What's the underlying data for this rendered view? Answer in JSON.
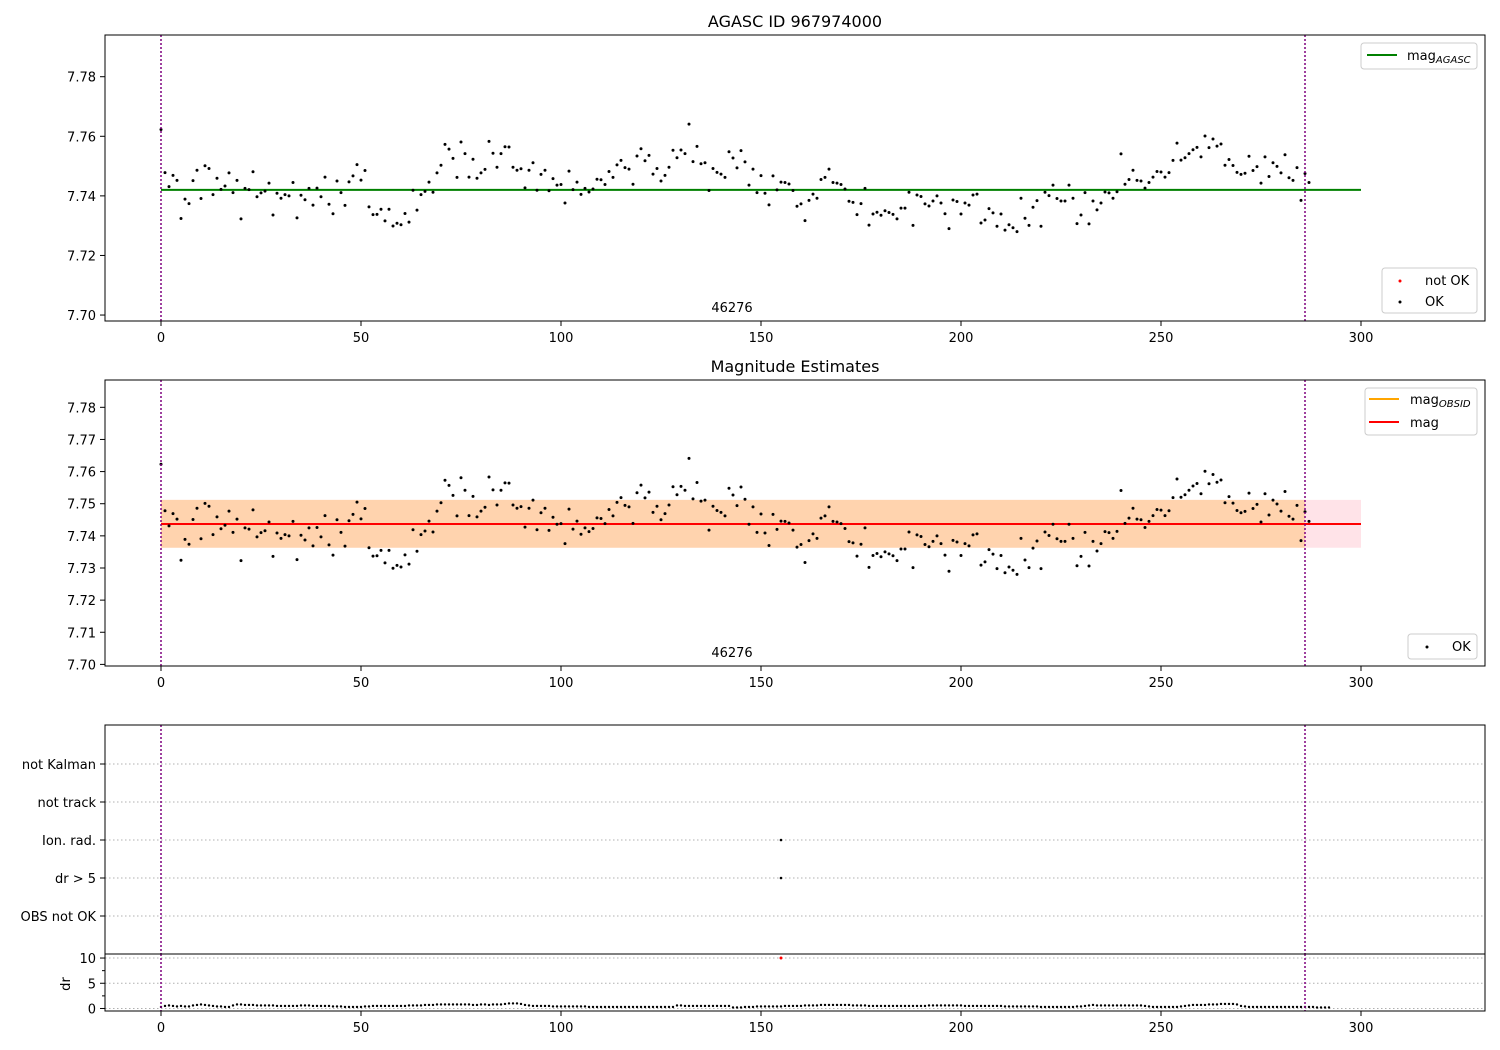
{
  "chart_data": [
    {
      "type": "scatter",
      "title": "AGASC ID 967974000",
      "xlim": [
        -14,
        331
      ],
      "ylim": [
        7.698,
        7.794
      ],
      "yticks": [
        7.7,
        7.72,
        7.74,
        7.76,
        7.78
      ],
      "xticks": [
        0,
        50,
        100,
        150,
        200,
        250,
        300
      ],
      "grid": false,
      "obsid_label": "46276",
      "vlines": [
        0,
        286
      ],
      "reference_lines": [
        {
          "name": "mag",
          "subscript": "AGASC",
          "value": 7.742,
          "color": "#008000",
          "x_range": [
            0,
            300
          ]
        }
      ],
      "legends": [
        {
          "placement": "top-right",
          "entries": [
            {
              "label": "mag",
              "subscript": "AGASC",
              "kind": "line",
              "color": "#008000"
            }
          ]
        },
        {
          "placement": "bottom-right",
          "entries": [
            {
              "label": "not OK",
              "kind": "dot",
              "color": "#ff0000"
            },
            {
              "label": "OK",
              "kind": "dot",
              "color": "#000000"
            }
          ]
        }
      ],
      "series": [
        {
          "name": "OK",
          "color": "#000000",
          "x_start": 0,
          "x_step": 1,
          "values": [
            7.7623,
            7.7478,
            7.7431,
            7.7469,
            7.7452,
            7.7324,
            7.7389,
            7.7374,
            7.7451,
            7.7486,
            7.7391,
            7.7501,
            7.7492,
            7.7404,
            7.7459,
            7.7422,
            7.7433,
            7.7477,
            7.7411,
            7.7452,
            7.7323,
            7.7425,
            7.7421,
            7.7481,
            7.7397,
            7.741,
            7.7416,
            7.7443,
            7.7336,
            7.7409,
            7.7392,
            7.7404,
            7.74,
            7.7445,
            7.7326,
            7.7402,
            7.7387,
            7.7425,
            7.7369,
            7.7426,
            7.7397,
            7.7463,
            7.7372,
            7.734,
            7.745,
            7.7411,
            7.7368,
            7.7447,
            7.7467,
            7.7505,
            7.7453,
            7.7485,
            7.7363,
            7.7337,
            7.7338,
            7.7355,
            7.7316,
            7.7355,
            7.7299,
            7.7308,
            7.7303,
            7.7341,
            7.7312,
            7.7419,
            7.7352,
            7.7404,
            7.7415,
            7.7446,
            7.7412,
            7.7477,
            7.7503,
            7.7573,
            7.7557,
            7.7526,
            7.7462,
            7.7581,
            7.7542,
            7.7463,
            7.7523,
            7.7459,
            7.7477,
            7.7489,
            7.7583,
            7.7543,
            7.7496,
            7.7542,
            7.7565,
            7.7564,
            7.7496,
            7.7486,
            7.7491,
            7.7427,
            7.7486,
            7.7511,
            7.7419,
            7.7472,
            7.7486,
            7.7417,
            7.7458,
            7.7436,
            7.7438,
            7.7376,
            7.7483,
            7.7421,
            7.7446,
            7.7405,
            7.7425,
            7.7413,
            7.7423,
            7.7456,
            7.7454,
            7.7438,
            7.7482,
            7.7462,
            7.7504,
            7.7519,
            7.7495,
            7.749,
            7.7439,
            7.7534,
            7.7558,
            7.7518,
            7.7536,
            7.7473,
            7.7492,
            7.745,
            7.7469,
            7.7496,
            7.7553,
            7.7528,
            7.7554,
            7.7542,
            7.7641,
            7.7515,
            7.7566,
            7.7508,
            7.7511,
            7.7418,
            7.7492,
            7.7479,
            7.7473,
            7.7462,
            7.7548,
            7.7527,
            7.7494,
            7.7552,
            7.7514,
            7.7436,
            7.749,
            7.7411,
            7.7468,
            7.7409,
            7.737,
            7.7467,
            7.742,
            7.7446,
            7.7445,
            7.744,
            7.7418,
            7.7365,
            7.7373,
            7.7317,
            7.7385,
            7.7406,
            7.7392,
            7.7455,
            7.7462,
            7.749,
            7.7445,
            7.7443,
            7.7438,
            7.7423,
            7.7382,
            7.7378,
            7.7337,
            7.7374,
            7.7425,
            7.7302,
            7.7339,
            7.7345,
            7.7335,
            7.735,
            7.7344,
            7.7338,
            7.7323,
            7.7359,
            7.7359,
            7.7412,
            7.7301,
            7.7403,
            7.7398,
            7.7373,
            7.7366,
            7.7383,
            7.74,
            7.7376,
            7.734,
            7.729,
            7.7386,
            7.7381,
            7.7339,
            7.7376,
            7.7369,
            7.7403,
            7.7406,
            7.7309,
            7.7319,
            7.7357,
            7.7343,
            7.7298,
            7.7339,
            7.7285,
            7.7303,
            7.7293,
            7.728,
            7.7392,
            7.7325,
            7.7301,
            7.7362,
            7.7384,
            7.7298,
            7.7412,
            7.7401,
            7.7436,
            7.7391,
            7.7383,
            7.7383,
            7.7436,
            7.7392,
            7.7307,
            7.7336,
            7.7411,
            7.7306,
            7.7383,
            7.7353,
            7.7376,
            7.7413,
            7.741,
            7.7392,
            7.7414,
            7.7541,
            7.7439,
            7.7455,
            7.7486,
            7.7452,
            7.745,
            7.7426,
            7.7445,
            7.7463,
            7.7482,
            7.748,
            7.7463,
            7.7478,
            7.7519,
            7.7577,
            7.752,
            7.7528,
            7.7542,
            7.7555,
            7.7563,
            7.7531,
            7.7601,
            7.7562,
            7.7591,
            7.7567,
            7.7574,
            7.7503,
            7.7522,
            7.7502,
            7.7479,
            7.7472,
            7.7476,
            7.7533,
            7.7485,
            7.7498,
            7.7443,
            7.7531,
            7.7465,
            7.7511,
            7.7499,
            7.7477,
            7.7538,
            7.7461,
            7.7452,
            7.7495,
            7.7385,
            7.7475,
            7.7445
          ]
        },
        {
          "name": "not OK",
          "color": "#ff0000",
          "values": []
        }
      ]
    },
    {
      "type": "scatter",
      "title": "Magnitude Estimates",
      "xlim": [
        -14,
        331
      ],
      "ylim": [
        7.6995,
        7.7885
      ],
      "yticks": [
        7.7,
        7.71,
        7.72,
        7.73,
        7.74,
        7.75,
        7.76,
        7.77,
        7.78
      ],
      "xticks": [
        0,
        50,
        100,
        150,
        200,
        250,
        300
      ],
      "grid": false,
      "obsid_label": "46276",
      "vlines": [
        0,
        286
      ],
      "reference_lines": [
        {
          "name": "mag",
          "subscript": "OBSID",
          "value": 7.7437,
          "color": "#ffa500",
          "x_range": [
            0,
            300
          ],
          "band": [
            7.7363,
            7.7512
          ]
        },
        {
          "name": "mag",
          "value": 7.7437,
          "color": "#ff0000",
          "x_range": [
            0,
            300
          ],
          "band": [
            7.7363,
            7.7512
          ]
        }
      ],
      "legends": [
        {
          "placement": "top-right",
          "entries": [
            {
              "label": "mag",
              "subscript": "OBSID",
              "kind": "line",
              "color": "#ffa500"
            },
            {
              "label": "mag",
              "kind": "line",
              "color": "#ff0000"
            }
          ]
        },
        {
          "placement": "bottom-right",
          "entries": [
            {
              "label": "OK",
              "kind": "dot",
              "color": "#000000"
            }
          ]
        }
      ],
      "series": [
        {
          "name": "OK",
          "color": "#000000",
          "x_start": 0,
          "x_step": 1,
          "values": "same as AGASC ID 967974000 OK series"
        }
      ]
    },
    {
      "type": "scatter",
      "title": "",
      "xlim": [
        -14,
        331
      ],
      "xticks": [
        0,
        50,
        100,
        150,
        200,
        250,
        300
      ],
      "categories": [
        "not Kalman",
        "not track",
        "Ion. rad.",
        "dr > 5",
        "OBS not OK"
      ],
      "grid": true,
      "vlines": [
        0,
        286
      ],
      "flags": [
        {
          "category": "Ion. rad.",
          "x": [
            155
          ]
        },
        {
          "category": "dr > 5",
          "x": [
            155
          ]
        }
      ]
    },
    {
      "type": "scatter",
      "title": "",
      "ylabel": "dr",
      "xlim": [
        -14,
        331
      ],
      "ylim": [
        -0.5,
        10.8
      ],
      "yticks": [
        0,
        5,
        10
      ],
      "xticks": [
        0,
        50,
        100,
        150,
        200,
        250,
        300
      ],
      "grid": true,
      "vlines": [
        0,
        286
      ],
      "series": [
        {
          "name": "dr",
          "color": "#000000",
          "x_start": 0,
          "x_step": 1,
          "values": [
            0.3,
            0.5,
            0.6,
            0.5,
            0.4,
            0.5,
            0.4,
            0.4,
            0.6,
            0.7,
            0.8,
            0.7,
            0.6,
            0.5,
            0.4,
            0.4,
            0.3,
            0.3,
            0.6,
            0.8,
            0.8,
            0.7,
            0.7,
            0.7,
            0.6,
            0.6,
            0.6,
            0.6,
            0.6,
            0.5,
            0.5,
            0.5,
            0.5,
            0.5,
            0.5,
            0.6,
            0.6,
            0.6,
            0.5,
            0.5,
            0.5,
            0.5,
            0.5,
            0.4,
            0.4,
            0.4,
            0.3,
            0.3,
            0.3,
            0.3,
            0.3,
            0.4,
            0.4,
            0.5,
            0.5,
            0.5,
            0.5,
            0.5,
            0.5,
            0.5,
            0.5,
            0.5,
            0.6,
            0.6,
            0.6,
            0.6,
            0.7,
            0.7,
            0.7,
            0.8,
            0.8,
            0.8,
            0.8,
            0.8,
            0.8,
            0.8,
            0.8,
            0.8,
            0.7,
            0.7,
            0.8,
            0.8,
            0.7,
            0.8,
            0.8,
            0.8,
            0.9,
            1.0,
            1.0,
            1.0,
            0.9,
            0.7,
            0.6,
            0.5,
            0.5,
            0.5,
            0.5,
            0.5,
            0.4,
            0.4,
            0.4,
            0.4,
            0.4,
            0.4,
            0.4,
            0.4,
            0.4,
            0.3,
            0.3,
            0.3,
            0.3,
            0.3,
            0.3,
            0.3,
            0.3,
            0.3,
            0.3,
            0.3,
            0.3,
            0.3,
            0.3,
            0.3,
            0.3,
            0.3,
            0.3,
            0.3,
            0.3,
            0.3,
            0.3,
            0.6,
            0.6,
            0.5,
            0.5,
            0.5,
            0.5,
            0.5,
            0.5,
            0.5,
            0.5,
            0.5,
            0.5,
            0.5,
            0.5,
            0.2,
            0.2,
            0.2,
            0.3,
            0.3,
            0.3,
            0.4,
            0.4,
            0.4,
            0.4,
            0.4,
            0.4,
            0.4,
            0.5,
            0.5,
            0.5,
            0.5,
            0.5,
            0.6,
            0.6,
            0.6,
            0.6,
            0.7,
            0.7,
            0.7,
            0.7,
            0.7,
            0.7,
            0.7,
            0.7,
            0.6,
            0.6,
            0.6,
            0.6,
            0.5,
            0.5,
            0.5,
            0.5,
            0.5,
            0.5,
            0.5,
            0.5,
            0.5,
            0.5,
            0.5,
            0.5,
            0.5,
            0.5,
            0.5,
            0.6,
            0.6,
            0.6,
            0.6,
            0.6,
            0.6,
            0.6,
            0.6,
            0.6,
            0.5,
            0.5,
            0.5,
            0.5,
            0.5,
            0.5,
            0.5,
            0.5,
            0.5,
            0.5,
            0.4,
            0.4,
            0.4,
            0.4,
            0.4,
            0.4,
            0.4,
            0.4,
            0.4,
            0.3,
            0.3,
            0.3,
            0.3,
            0.3,
            0.3,
            0.3,
            0.3,
            0.3,
            0.4,
            0.4,
            0.5,
            0.6,
            0.7,
            0.6,
            0.6,
            0.6,
            0.6,
            0.6,
            0.6,
            0.6,
            0.6,
            0.6,
            0.6,
            0.6,
            0.6,
            0.5,
            0.4,
            0.3,
            0.3,
            0.3,
            0.3,
            0.3,
            0.3,
            0.3,
            0.4,
            0.5,
            0.6,
            0.7,
            0.7,
            0.7,
            0.7,
            0.8,
            0.8,
            0.8,
            0.9,
            0.9,
            0.9,
            0.9,
            0.8,
            0.5,
            0.4,
            0.3,
            0.3,
            0.3,
            0.3,
            0.3,
            0.3,
            0.3,
            0.3,
            0.3,
            0.3,
            0.3,
            0.3,
            0.3,
            0.3,
            0.3,
            0.3,
            0.3,
            0.2,
            0.2,
            0.2,
            0.2
          ]
        },
        {
          "name": "dr outlier",
          "color": "#ff0000",
          "points": [
            [
              155,
              10
            ]
          ]
        }
      ]
    }
  ]
}
